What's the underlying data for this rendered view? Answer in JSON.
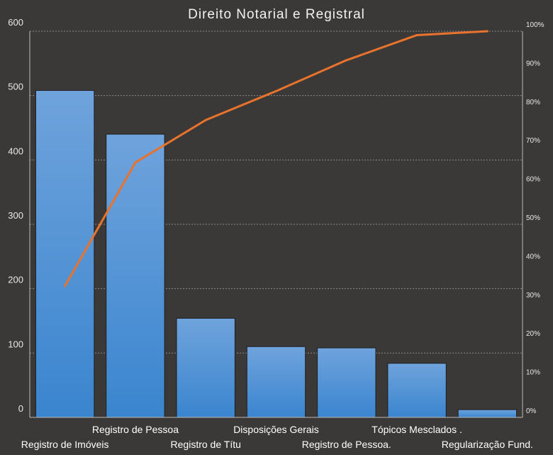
{
  "chart_data": {
    "type": "bar",
    "title": "Direito Notarial e Registral",
    "categories": [
      "Registro de Imóveis",
      "Registro de Pessoa",
      "Registro de Títu",
      "Disposições Gerais",
      "Registro de Pessoa.",
      "Tópicos Mesclados  .",
      "Regularização Fund."
    ],
    "series": [
      {
        "values": [
          508,
          440,
          154,
          110,
          108,
          84,
          12
        ]
      },
      {
        "axis": "right",
        "type": "line",
        "values": [
          0.34,
          0.66,
          0.77,
          0.845,
          0.925,
          0.99,
          1.0
        ]
      }
    ],
    "ylim": [
      0,
      600
    ],
    "yticks": [
      "0",
      "100",
      "200",
      "300",
      "400",
      "500",
      "600"
    ],
    "y2lim": [
      0,
      1
    ],
    "y2ticks": [
      "0%",
      "10%",
      "20%",
      "30%",
      "40%",
      "50%",
      "60%",
      "70%",
      "80%",
      "90%",
      "100%"
    ],
    "grid": true,
    "colors": {
      "background": "#3b3938",
      "bar_top": "#6fa3dc",
      "bar_bottom": "#3a85cf",
      "line": "#e8732c"
    }
  }
}
